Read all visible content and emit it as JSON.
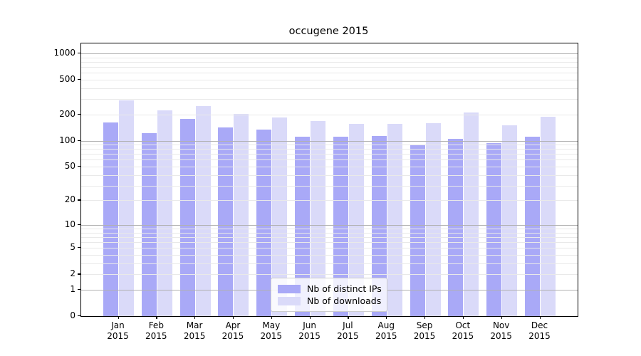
{
  "title": "occugene 2015",
  "chart_data": {
    "type": "bar",
    "title": "occugene 2015",
    "categories": [
      "Jan",
      "Feb",
      "Mar",
      "Apr",
      "May",
      "Jun",
      "Jul",
      "Aug",
      "Sep",
      "Oct",
      "Nov",
      "Dec"
    ],
    "year_label": "2015",
    "series": [
      {
        "name": "Nb of distinct IPs",
        "color": "#a9a9f7",
        "values": [
          163,
          122,
          178,
          143,
          133,
          111,
          112,
          113,
          89,
          104,
          93,
          112
        ]
      },
      {
        "name": "Nb of downloads",
        "color": "#dadaf9",
        "values": [
          290,
          222,
          250,
          202,
          184,
          169,
          155,
          157,
          159,
          210,
          150,
          187
        ]
      }
    ],
    "xlabel": "",
    "ylabel": "",
    "y_ticks": [
      0,
      1,
      2,
      5,
      10,
      20,
      50,
      100,
      200,
      500,
      1000
    ],
    "y_major_gridlines": [
      1,
      10,
      100,
      1000
    ],
    "ylim": [
      0,
      1300
    ],
    "yscale": "symlog",
    "grid": "on",
    "legend_position": "lower-center",
    "colors": {
      "major_grid": "#b1b1b1",
      "minor_grid": "#e9e9e9",
      "spine": "#000000",
      "background": "#ffffff"
    }
  }
}
